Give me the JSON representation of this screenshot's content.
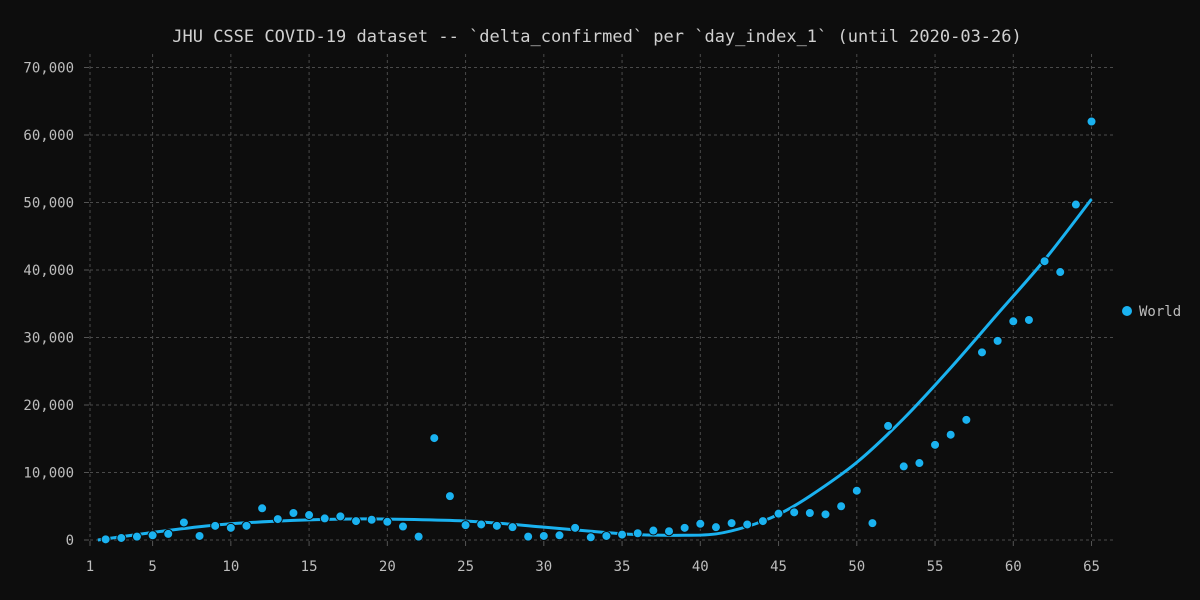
{
  "chart_data": {
    "type": "scatter",
    "title": "JHU CSSE COVID-19 dataset -- `delta_confirmed` per `day_index_1` (until 2020-03-26)",
    "xlabel": "",
    "ylabel": "",
    "xlim": [
      1,
      66.5
    ],
    "ylim": [
      0,
      72000
    ],
    "xticks": [
      1,
      5,
      10,
      15,
      20,
      25,
      30,
      35,
      40,
      45,
      50,
      55,
      60,
      65
    ],
    "yticks": [
      0,
      10000,
      20000,
      30000,
      40000,
      50000,
      60000,
      70000
    ],
    "ytick_labels": [
      "0",
      "10,000",
      "20,000",
      "30,000",
      "40,000",
      "50,000",
      "60,000",
      "70,000"
    ],
    "grid": true,
    "legend_position": "right",
    "series": [
      {
        "name": "World",
        "color": "#1ab2f0",
        "x": [
          2,
          3,
          4,
          5,
          6,
          7,
          8,
          9,
          10,
          11,
          12,
          13,
          14,
          15,
          16,
          17,
          18,
          19,
          20,
          21,
          22,
          23,
          24,
          25,
          26,
          27,
          28,
          29,
          30,
          31,
          32,
          33,
          34,
          35,
          36,
          37,
          38,
          39,
          40,
          41,
          42,
          43,
          44,
          45,
          46,
          47,
          48,
          49,
          50,
          51,
          52,
          53,
          54,
          55,
          56,
          57,
          58,
          59,
          60,
          61,
          62,
          63,
          64,
          65
        ],
        "y": [
          100,
          300,
          500,
          700,
          900,
          2600,
          600,
          2100,
          1800,
          2100,
          4700,
          3100,
          4000,
          3700,
          3200,
          3500,
          2800,
          3000,
          2700,
          2000,
          500,
          15100,
          6500,
          2200,
          2300,
          2100,
          1900,
          500,
          600,
          700,
          1800,
          400,
          600,
          800,
          1000,
          1400,
          1300,
          1800,
          2400,
          1900,
          2500,
          2300,
          2800,
          3900,
          4100,
          4000,
          3800,
          5000,
          7300,
          2500,
          16900,
          10900,
          11400,
          14100,
          15600,
          17800,
          27800,
          29500,
          32400,
          32600,
          41300,
          39700,
          49700,
          62000
        ]
      }
    ],
    "trend": {
      "color": "#1ab2f0",
      "x": [
        1.5,
        4,
        7,
        10,
        14,
        17,
        20,
        24,
        27,
        30,
        33,
        36,
        39,
        41,
        43,
        45,
        47,
        50,
        53,
        56,
        59,
        62,
        65
      ],
      "y": [
        0,
        800,
        1700,
        2400,
        2900,
        3100,
        3100,
        2900,
        2500,
        1900,
        1300,
        800,
        700,
        900,
        2000,
        3800,
        6500,
        11500,
        18000,
        25500,
        33500,
        41500,
        50500
      ]
    }
  }
}
